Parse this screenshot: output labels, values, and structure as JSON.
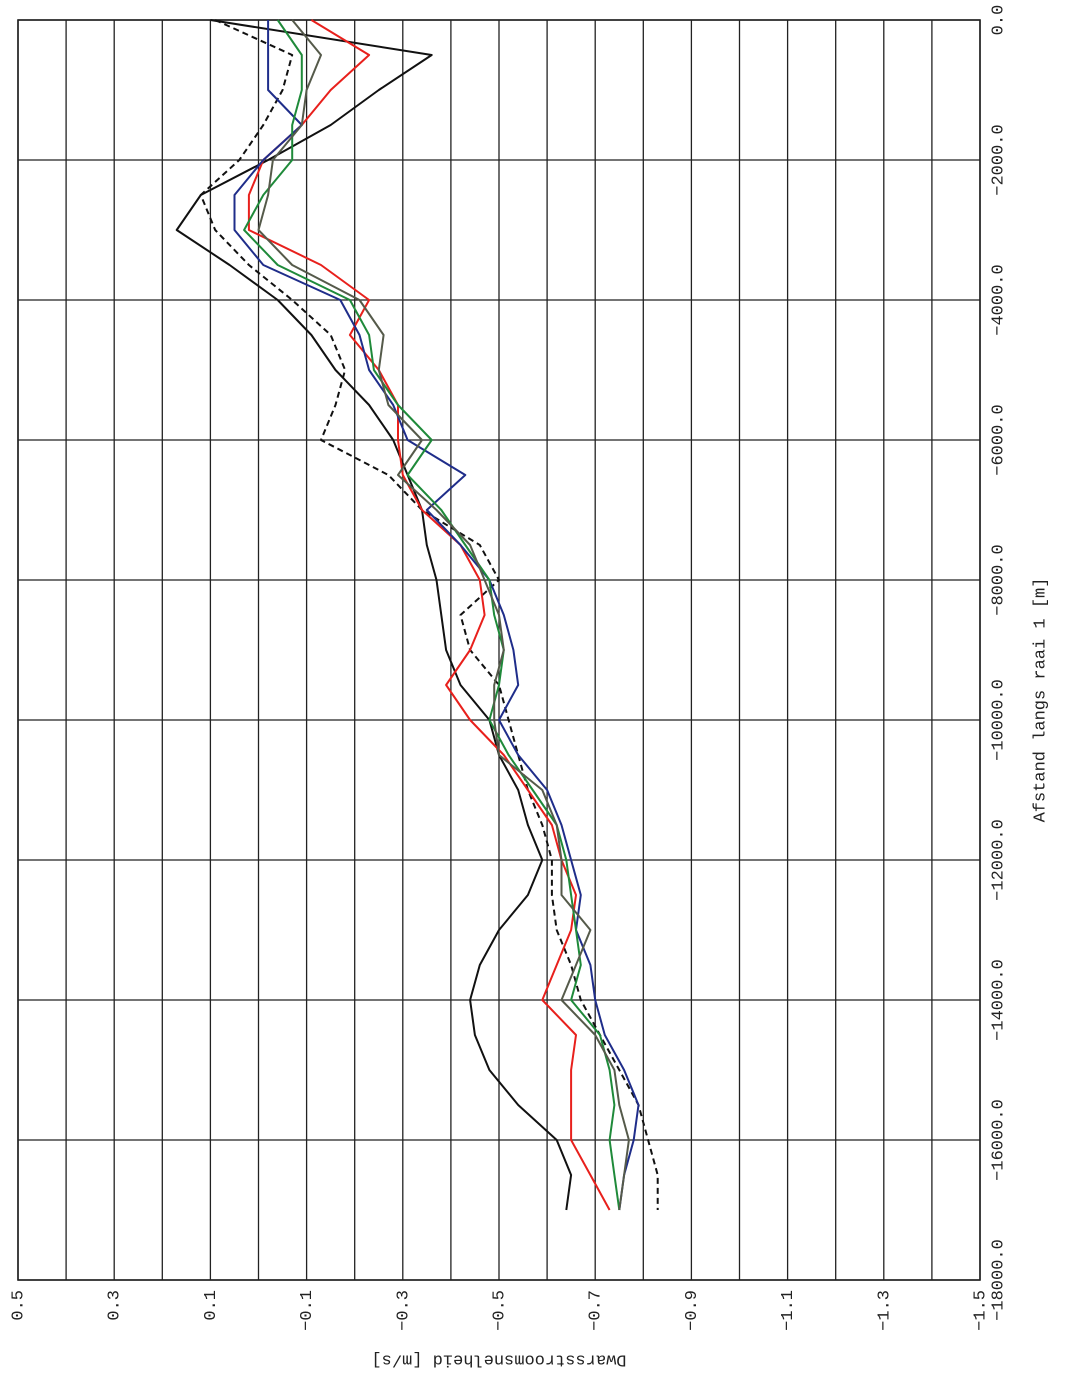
{
  "chart_data": {
    "type": "line",
    "xlabel": "Afstand langs raai 1 [m]",
    "ylabel": "Dwarsstroomsnelheid [m/s]",
    "xlim": [
      -18000,
      0
    ],
    "ylim": [
      -1.5,
      0.5
    ],
    "xticks": [
      {
        "value": 0,
        "label": "0.0"
      },
      {
        "value": -2000,
        "label": "−2000.0"
      },
      {
        "value": -4000,
        "label": "−4000.0"
      },
      {
        "value": -6000,
        "label": "−6000.0"
      },
      {
        "value": -8000,
        "label": "−8000.0"
      },
      {
        "value": -10000,
        "label": "−10000.0"
      },
      {
        "value": -12000,
        "label": "−12000.0"
      },
      {
        "value": -14000,
        "label": "−14000.0"
      },
      {
        "value": -16000,
        "label": "−16000.0"
      },
      {
        "value": -18000,
        "label": "−18000.0"
      }
    ],
    "yticks": [
      {
        "value": 0.5,
        "label": "0.5"
      },
      {
        "value": 0.3,
        "label": "0.3"
      },
      {
        "value": 0.1,
        "label": "0.1"
      },
      {
        "value": -0.1,
        "label": "−0.1"
      },
      {
        "value": -0.3,
        "label": "−0.3"
      },
      {
        "value": -0.5,
        "label": "−0.5"
      },
      {
        "value": -0.7,
        "label": "−0.7"
      },
      {
        "value": -0.9,
        "label": "−0.9"
      },
      {
        "value": -1.1,
        "label": "−1.1"
      },
      {
        "value": -1.3,
        "label": "−1.3"
      },
      {
        "value": -1.5,
        "label": "−1.5"
      }
    ],
    "grid": true,
    "x": [
      0,
      -500,
      -1000,
      -1500,
      -2000,
      -2500,
      -3000,
      -3500,
      -4000,
      -4500,
      -5000,
      -5500,
      -6000,
      -6500,
      -7000,
      -7500,
      -8000,
      -8500,
      -9000,
      -9500,
      -10000,
      -10500,
      -11000,
      -11500,
      -12000,
      -12500,
      -13000,
      -13500,
      -14000,
      -14500,
      -15000,
      -15500,
      -16000,
      -16500,
      -17000
    ],
    "series": [
      {
        "color": "#111111",
        "dash": false,
        "values": [
          0.1,
          -0.36,
          -0.25,
          -0.15,
          -0.02,
          0.12,
          0.17,
          0.06,
          -0.04,
          -0.11,
          -0.16,
          -0.23,
          -0.28,
          -0.31,
          -0.34,
          -0.35,
          -0.37,
          -0.38,
          -0.39,
          -0.42,
          -0.48,
          -0.5,
          -0.54,
          -0.56,
          -0.59,
          -0.56,
          -0.5,
          -0.46,
          -0.44,
          -0.45,
          -0.48,
          -0.54,
          -0.62,
          -0.65,
          -0.64
        ]
      },
      {
        "color": "#111111",
        "dash": true,
        "values": [
          0.09,
          -0.07,
          -0.05,
          -0.01,
          0.04,
          0.12,
          0.09,
          0.02,
          -0.07,
          -0.15,
          -0.18,
          -0.16,
          -0.13,
          -0.27,
          -0.34,
          -0.46,
          -0.5,
          -0.42,
          -0.44,
          -0.5,
          -0.52,
          -0.54,
          -0.56,
          -0.59,
          -0.61,
          -0.61,
          -0.62,
          -0.65,
          -0.67,
          -0.71,
          -0.75,
          -0.79,
          -0.81,
          -0.83,
          -0.83
        ]
      },
      {
        "color": "#e8201c",
        "dash": false,
        "values": [
          -0.11,
          -0.23,
          -0.15,
          -0.09,
          -0.01,
          0.02,
          0.02,
          -0.13,
          -0.23,
          -0.19,
          -0.25,
          -0.29,
          -0.29,
          -0.3,
          -0.34,
          -0.42,
          -0.46,
          -0.47,
          -0.44,
          -0.39,
          -0.44,
          -0.51,
          -0.56,
          -0.61,
          -0.63,
          -0.66,
          -0.65,
          -0.62,
          -0.59,
          -0.66,
          -0.65,
          -0.65,
          -0.65,
          -0.69,
          -0.73
        ]
      },
      {
        "color": "#1f2d8a",
        "dash": false,
        "values": [
          -0.02,
          -0.02,
          -0.02,
          -0.09,
          -0.01,
          0.05,
          0.05,
          -0.01,
          -0.17,
          -0.21,
          -0.23,
          -0.28,
          -0.31,
          -0.43,
          -0.35,
          -0.42,
          -0.48,
          -0.51,
          -0.53,
          -0.54,
          -0.5,
          -0.54,
          -0.6,
          -0.63,
          -0.65,
          -0.67,
          -0.66,
          -0.69,
          -0.7,
          -0.72,
          -0.76,
          -0.79,
          -0.78,
          -0.76,
          -0.75
        ]
      },
      {
        "color": "#1f8a3a",
        "dash": false,
        "values": [
          -0.04,
          -0.09,
          -0.09,
          -0.07,
          -0.07,
          -0.01,
          0.03,
          -0.04,
          -0.19,
          -0.23,
          -0.24,
          -0.29,
          -0.36,
          -0.31,
          -0.38,
          -0.43,
          -0.48,
          -0.49,
          -0.51,
          -0.5,
          -0.48,
          -0.52,
          -0.57,
          -0.62,
          -0.64,
          -0.65,
          -0.66,
          -0.67,
          -0.65,
          -0.71,
          -0.73,
          -0.74,
          -0.73,
          -0.74,
          -0.75
        ]
      },
      {
        "color": "#555a4a",
        "dash": false,
        "values": [
          -0.07,
          -0.13,
          -0.1,
          -0.09,
          -0.03,
          -0.02,
          0.0,
          -0.07,
          -0.21,
          -0.26,
          -0.25,
          -0.27,
          -0.34,
          -0.29,
          -0.37,
          -0.44,
          -0.47,
          -0.5,
          -0.51,
          -0.49,
          -0.49,
          -0.5,
          -0.59,
          -0.62,
          -0.63,
          -0.63,
          -0.69,
          -0.66,
          -0.63,
          -0.7,
          -0.74,
          -0.75,
          -0.77,
          -0.76,
          -0.75
        ]
      }
    ]
  }
}
